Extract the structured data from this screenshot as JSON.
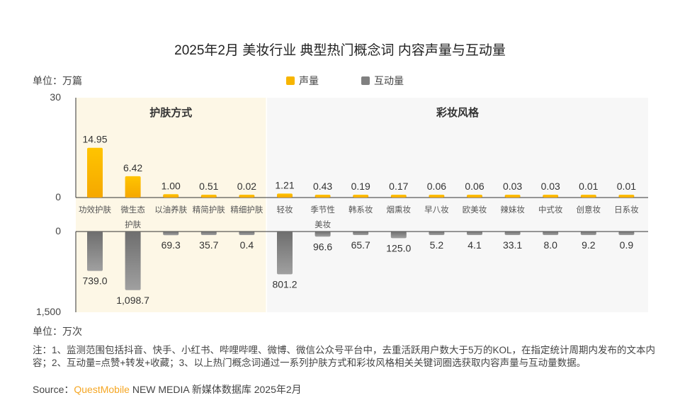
{
  "title": "2025年2月 美妆行业 典型热门概念词 内容声量与互动量",
  "unit_top": "单位：万篇",
  "unit_bottom": "单位：万次",
  "legend": [
    {
      "label": "声量",
      "color": "#f7b500"
    },
    {
      "label": "互动量",
      "color": "#808080"
    }
  ],
  "note": "注：1、监测范围包括抖音、快手、小红书、哔哩哔哩、微博、微信公众号平台中，去重活跃用户数大于5万的KOL，在指定统计周期内发布的文本内容；2、互动量=点赞+转发+收藏；3、以上热门概念词通过一系列护肤方式和彩妆风格相关关键词圈选获取内容声量与互动量数据。",
  "source_prefix": "Source：",
  "source_brand": "QuestMobile",
  "source_rest": " NEW MEDIA  新媒体数据库 2025年2月",
  "chart_data": {
    "type": "bar",
    "title": "2025年2月 美妆行业 典型热门概念词 内容声量与互动量",
    "categories": [
      "功效护肤",
      "微生态护肤",
      "以油养肤",
      "精简护肤",
      "精细护肤",
      "轻妆",
      "季节性美妆",
      "韩系妆",
      "烟熏妆",
      "早八妆",
      "欧美妆",
      "辣妹妆",
      "中式妆",
      "创意妆",
      "日系妆"
    ],
    "groups": [
      {
        "label": "护肤方式",
        "range": [
          0,
          4
        ]
      },
      {
        "label": "彩妆风格",
        "range": [
          5,
          14
        ]
      }
    ],
    "series": [
      {
        "name": "声量",
        "unit": "万篇",
        "ylim": [
          0,
          30
        ],
        "tick_labels": [
          "0",
          "30"
        ],
        "values": [
          14.95,
          6.42,
          1.0,
          0.51,
          0.02,
          1.21,
          0.43,
          0.19,
          0.17,
          0.06,
          0.06,
          0.03,
          0.03,
          0.01,
          0.01
        ],
        "labels": [
          "14.95",
          "6.42",
          "1.00",
          "0.51",
          "0.02",
          "1.21",
          "0.43",
          "0.19",
          "0.17",
          "0.06",
          "0.06",
          "0.03",
          "0.03",
          "0.01",
          "0.01"
        ]
      },
      {
        "name": "互动量",
        "unit": "万次",
        "ylim": [
          0,
          1500
        ],
        "tick_labels": [
          "0",
          "1,500"
        ],
        "values": [
          739.0,
          1098.7,
          69.3,
          35.7,
          0.4,
          801.2,
          96.6,
          65.7,
          125.0,
          5.2,
          4.1,
          33.1,
          8.0,
          9.2,
          0.9
        ],
        "labels": [
          "739.0",
          "1,098.7",
          "69.3",
          "35.7",
          "0.4",
          "801.2",
          "96.6",
          "65.7",
          "125.0",
          "5.2",
          "4.1",
          "33.1",
          "8.0",
          "9.2",
          "0.9"
        ]
      }
    ]
  }
}
